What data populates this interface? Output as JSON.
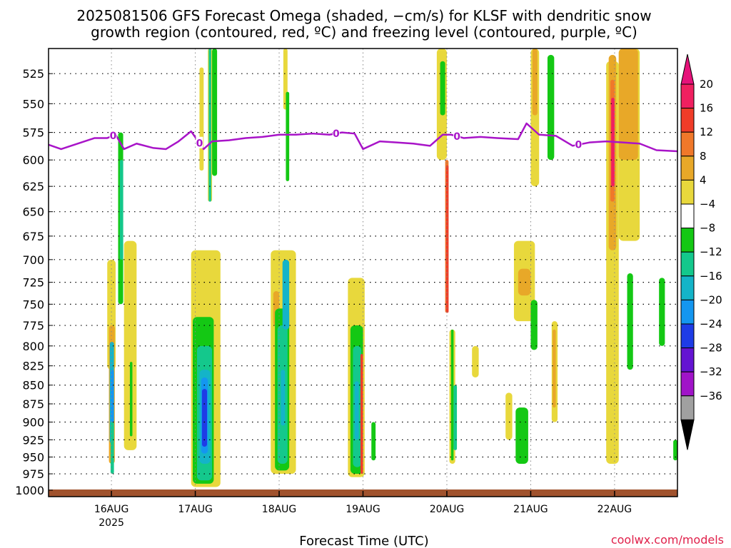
{
  "chart_data": {
    "type": "heatmap",
    "title_lines": [
      "2025081506 GFS Forecast Omega (shaded, −cm/s) for KLSF with dendritic snow",
      "growth region (contoured, red, ºC) and freezing level (contoured, purple, ºC)"
    ],
    "xlabel": "Forecast Time (UTC)",
    "credit": "coolwx.com/models",
    "x_range": [
      15.25,
      22.75
    ],
    "y_range": [
      505,
      1010
    ],
    "y_scale": "log-pressure (inverted)",
    "grid": "dotted",
    "y_ticks": [
      525,
      550,
      575,
      600,
      625,
      650,
      675,
      700,
      725,
      750,
      775,
      800,
      825,
      850,
      875,
      900,
      925,
      950,
      975,
      1000
    ],
    "x_ticks": [
      {
        "x": 16,
        "label": "16AUG",
        "sub": "2025"
      },
      {
        "x": 17,
        "label": "17AUG",
        "sub": ""
      },
      {
        "x": 18,
        "label": "18AUG",
        "sub": ""
      },
      {
        "x": 19,
        "label": "19AUG",
        "sub": ""
      },
      {
        "x": 20,
        "label": "20AUG",
        "sub": ""
      },
      {
        "x": 21,
        "label": "21AUG",
        "sub": ""
      },
      {
        "x": 22,
        "label": "22AUG",
        "sub": ""
      }
    ],
    "colorbar": {
      "labels": [
        "20",
        "16",
        "12",
        "8",
        "4",
        "−4",
        "−8",
        "−12",
        "−16",
        "−20",
        "−24",
        "−28",
        "−32",
        "−36"
      ],
      "colors": [
        "#f02060",
        "#f03c28",
        "#f0782a",
        "#e8a828",
        "#e8d83c",
        "#ffffff",
        "#14c814",
        "#14c88c",
        "#14b4c8",
        "#1496f0",
        "#1e3ce6",
        "#6414d2",
        "#a014c8",
        "#a0a0a0"
      ],
      "over_color": "#e6127a",
      "under_color": "#000000"
    },
    "freezing_level": {
      "label": "0",
      "color": "#a814c8",
      "label_x": [
        16.02,
        17.05,
        18.68,
        20.12,
        21.57
      ],
      "x": [
        15.25,
        15.4,
        15.6,
        15.8,
        15.95,
        16.05,
        16.15,
        16.3,
        16.5,
        16.65,
        16.8,
        16.95,
        17.1,
        17.2,
        17.4,
        17.6,
        17.8,
        18.0,
        18.2,
        18.4,
        18.6,
        18.75,
        18.9,
        19.0,
        19.2,
        19.4,
        19.6,
        19.8,
        19.95,
        20.05,
        20.2,
        20.4,
        20.6,
        20.85,
        20.95,
        21.1,
        21.3,
        21.5,
        21.7,
        21.9,
        22.1,
        22.3,
        22.5,
        22.75
      ],
      "y": [
        586,
        590,
        585,
        580,
        580,
        577,
        590,
        585,
        589,
        590,
        583,
        574,
        590,
        583,
        582,
        580,
        579,
        577,
        577,
        576,
        577,
        575,
        576,
        590,
        583,
        584,
        585,
        587,
        577,
        577,
        580,
        579,
        580,
        581,
        567,
        577,
        578,
        587,
        584,
        583,
        584,
        585,
        591,
        592
      ]
    },
    "shaded_regions": [
      {
        "x": [
          15.95,
          16.05
        ],
        "p": [
          700,
          830
        ],
        "color": "#e8d83c"
      },
      {
        "x": [
          15.97,
          16.04
        ],
        "p": [
          775,
          960
        ],
        "color": "#e8a828"
      },
      {
        "x": [
          15.98,
          16.03
        ],
        "p": [
          795,
          930
        ],
        "color": "#14b4c8"
      },
      {
        "x": [
          15.99,
          16.03
        ],
        "p": [
          830,
          900
        ],
        "color": "#1496f0"
      },
      {
        "x": [
          15.99,
          16.03
        ],
        "p": [
          900,
          975
        ],
        "color": "#14c88c"
      },
      {
        "x": [
          16.08,
          16.14
        ],
        "p": [
          575,
          750
        ],
        "color": "#14c814"
      },
      {
        "x": [
          16.1,
          16.14
        ],
        "p": [
          600,
          700
        ],
        "color": "#14c88c"
      },
      {
        "x": [
          16.15,
          16.3
        ],
        "p": [
          680,
          940
        ],
        "color": "#e8d83c"
      },
      {
        "x": [
          16.22,
          16.25
        ],
        "p": [
          820,
          920
        ],
        "color": "#14c814"
      },
      {
        "x": [
          16.95,
          17.3
        ],
        "p": [
          690,
          995
        ],
        "color": "#e8d83c"
      },
      {
        "x": [
          16.97,
          17.22
        ],
        "p": [
          765,
          990
        ],
        "color": "#14c814"
      },
      {
        "x": [
          17.02,
          17.2
        ],
        "p": [
          800,
          985
        ],
        "color": "#14c88c"
      },
      {
        "x": [
          17.05,
          17.18
        ],
        "p": [
          830,
          960
        ],
        "color": "#14b4c8"
      },
      {
        "x": [
          17.07,
          17.15
        ],
        "p": [
          840,
          945
        ],
        "color": "#1496f0"
      },
      {
        "x": [
          17.08,
          17.14
        ],
        "p": [
          855,
          935
        ],
        "color": "#1e3ce6"
      },
      {
        "x": [
          17.15,
          17.2
        ],
        "p": [
          505,
          640
        ],
        "color": "#e8d83c"
      },
      {
        "x": [
          17.16,
          17.19
        ],
        "p": [
          505,
          640
        ],
        "color": "#14c88c"
      },
      {
        "x": [
          17.2,
          17.26
        ],
        "p": [
          505,
          615
        ],
        "color": "#14c814"
      },
      {
        "x": [
          17.05,
          17.1
        ],
        "p": [
          520,
          610
        ],
        "color": "#e8d83c"
      },
      {
        "x": [
          17.9,
          18.2
        ],
        "p": [
          690,
          975
        ],
        "color": "#e8d83c"
      },
      {
        "x": [
          17.93,
          18.0
        ],
        "p": [
          735,
          775
        ],
        "color": "#e8a828"
      },
      {
        "x": [
          17.95,
          18.12
        ],
        "p": [
          755,
          970
        ],
        "color": "#14c814"
      },
      {
        "x": [
          17.98,
          18.1
        ],
        "p": [
          775,
          960
        ],
        "color": "#14c88c"
      },
      {
        "x": [
          18.02,
          18.07
        ],
        "p": [
          830,
          905
        ],
        "color": "#14b4c8"
      },
      {
        "x": [
          18.04,
          18.12
        ],
        "p": [
          700,
          780
        ],
        "color": "#14b4c8"
      },
      {
        "x": [
          18.05,
          18.1
        ],
        "p": [
          505,
          555
        ],
        "color": "#e8d83c"
      },
      {
        "x": [
          18.08,
          18.12
        ],
        "p": [
          540,
          620
        ],
        "color": "#14c814"
      },
      {
        "x": [
          18.82,
          19.02
        ],
        "p": [
          720,
          980
        ],
        "color": "#e8d83c"
      },
      {
        "x": [
          18.85,
          19.0
        ],
        "p": [
          775,
          975
        ],
        "color": "#14c814"
      },
      {
        "x": [
          18.88,
          18.98
        ],
        "p": [
          800,
          965
        ],
        "color": "#14c88c"
      },
      {
        "x": [
          18.9,
          18.95
        ],
        "p": [
          845,
          925
        ],
        "color": "#14b4c8"
      },
      {
        "x": [
          18.97,
          19.0
        ],
        "p": [
          810,
          975
        ],
        "color": "#f03c28"
      },
      {
        "x": [
          19.1,
          19.15
        ],
        "p": [
          900,
          955
        ],
        "color": "#14c814"
      },
      {
        "x": [
          19.88,
          20.0
        ],
        "p": [
          505,
          600
        ],
        "color": "#e8d83c"
      },
      {
        "x": [
          19.92,
          19.98
        ],
        "p": [
          515,
          560
        ],
        "color": "#14c814"
      },
      {
        "x": [
          19.98,
          20.02
        ],
        "p": [
          600,
          760
        ],
        "color": "#f0782a"
      },
      {
        "x": [
          19.99,
          20.02
        ],
        "p": [
          605,
          760
        ],
        "color": "#f03c28"
      },
      {
        "x": [
          20.03,
          20.1
        ],
        "p": [
          780,
          960
        ],
        "color": "#e8d83c"
      },
      {
        "x": [
          20.05,
          20.08
        ],
        "p": [
          780,
          955
        ],
        "color": "#14c814"
      },
      {
        "x": [
          20.08,
          20.12
        ],
        "p": [
          850,
          940
        ],
        "color": "#14c88c"
      },
      {
        "x": [
          20.3,
          20.38
        ],
        "p": [
          800,
          840
        ],
        "color": "#e8d83c"
      },
      {
        "x": [
          20.7,
          20.78
        ],
        "p": [
          860,
          925
        ],
        "color": "#e8d83c"
      },
      {
        "x": [
          20.8,
          21.05
        ],
        "p": [
          680,
          770
        ],
        "color": "#e8d83c"
      },
      {
        "x": [
          20.85,
          21.0
        ],
        "p": [
          710,
          740
        ],
        "color": "#e8a828"
      },
      {
        "x": [
          20.82,
          20.97
        ],
        "p": [
          880,
          960
        ],
        "color": "#14c814"
      },
      {
        "x": [
          21.0,
          21.08
        ],
        "p": [
          745,
          805
        ],
        "color": "#14c814"
      },
      {
        "x": [
          21.0,
          21.1
        ],
        "p": [
          505,
          625
        ],
        "color": "#e8d83c"
      },
      {
        "x": [
          21.02,
          21.08
        ],
        "p": [
          505,
          560
        ],
        "color": "#e8a828"
      },
      {
        "x": [
          21.2,
          21.28
        ],
        "p": [
          510,
          600
        ],
        "color": "#14c814"
      },
      {
        "x": [
          21.25,
          21.32
        ],
        "p": [
          770,
          900
        ],
        "color": "#e8d83c"
      },
      {
        "x": [
          21.26,
          21.3
        ],
        "p": [
          780,
          880
        ],
        "color": "#e8a828"
      },
      {
        "x": [
          21.9,
          22.05
        ],
        "p": [
          515,
          960
        ],
        "color": "#e8d83c"
      },
      {
        "x": [
          21.93,
          22.02
        ],
        "p": [
          510,
          690
        ],
        "color": "#e8a828"
      },
      {
        "x": [
          21.95,
          22.0
        ],
        "p": [
          530,
          640
        ],
        "color": "#f0782a"
      },
      {
        "x": [
          21.96,
          22.0
        ],
        "p": [
          545,
          625
        ],
        "color": "#f02060"
      },
      {
        "x": [
          22.05,
          22.3
        ],
        "p": [
          505,
          680
        ],
        "color": "#e8d83c"
      },
      {
        "x": [
          22.05,
          22.28
        ],
        "p": [
          505,
          600
        ],
        "color": "#e8a828"
      },
      {
        "x": [
          22.15,
          22.22
        ],
        "p": [
          715,
          830
        ],
        "color": "#14c814"
      },
      {
        "x": [
          22.53,
          22.6
        ],
        "p": [
          720,
          800
        ],
        "color": "#14c814"
      },
      {
        "x": [
          22.7,
          22.75
        ],
        "p": [
          925,
          955
        ],
        "color": "#14c814"
      }
    ]
  }
}
